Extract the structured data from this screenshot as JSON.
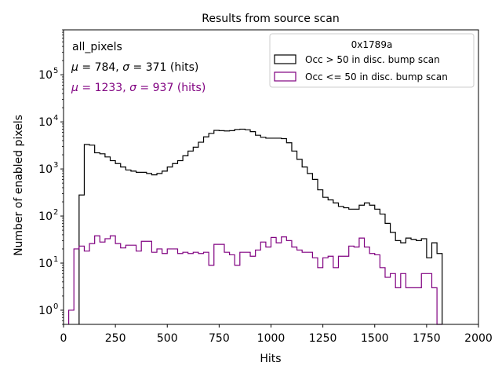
{
  "chart_data": {
    "type": "histogram",
    "title": "Results from source scan",
    "xlabel": "Hits",
    "ylabel": "Number of enabled pixels",
    "xlim": [
      0,
      2000
    ],
    "ylim_log": [
      0.5,
      900000
    ],
    "yscale": "log",
    "x_ticks": [
      0,
      250,
      500,
      750,
      1000,
      1250,
      1500,
      1750,
      2000
    ],
    "x_tick_labels": [
      "0",
      "250",
      "500",
      "750",
      "1000",
      "1250",
      "1500",
      "1750",
      "2000"
    ],
    "y_ticks": [
      1,
      10,
      100,
      1000,
      10000,
      100000
    ],
    "y_tick_labels": [
      {
        "base": "10",
        "exp": "0"
      },
      {
        "base": "10",
        "exp": "1"
      },
      {
        "base": "10",
        "exp": "2"
      },
      {
        "base": "10",
        "exp": "3"
      },
      {
        "base": "10",
        "exp": "4"
      },
      {
        "base": "10",
        "exp": "5"
      }
    ],
    "annotations": {
      "label": "all_pixels",
      "series1_stats": {
        "mu": "784",
        "sigma": "371",
        "unit": "(hits)"
      },
      "series2_stats": {
        "mu": "1233",
        "sigma": "937",
        "unit": "(hits)"
      }
    },
    "legend": {
      "position": "top-right",
      "title": "0x1789a"
    },
    "bin_width": 25,
    "series": [
      {
        "name": "Occ > 50 in disc. bump scan",
        "color": "#000000",
        "edges_start": 75,
        "values": [
          280,
          3300,
          3200,
          2200,
          2100,
          1800,
          1500,
          1300,
          1100,
          950,
          900,
          850,
          850,
          800,
          750,
          800,
          900,
          1100,
          1300,
          1500,
          1900,
          2400,
          2900,
          3700,
          4800,
          5700,
          6600,
          6500,
          6400,
          6500,
          6900,
          7000,
          6800,
          6200,
          5200,
          4700,
          4500,
          4500,
          4500,
          4400,
          3600,
          2400,
          1600,
          1100,
          800,
          600,
          360,
          250,
          220,
          190,
          160,
          150,
          140,
          140,
          170,
          190,
          170,
          140,
          110,
          70,
          45,
          30,
          27,
          34,
          32,
          30,
          33,
          13,
          27,
          16
        ]
      },
      {
        "name": "Occ <= 50 in disc. bump scan",
        "color": "#800080",
        "edges_start": 25,
        "values": [
          1.0,
          20,
          23,
          18,
          26,
          38,
          28,
          33,
          38,
          26,
          21,
          24,
          24,
          18,
          29,
          29,
          17,
          20,
          16,
          20,
          20,
          16,
          17,
          16,
          17,
          16,
          17,
          9,
          25,
          25,
          17,
          15,
          9,
          17,
          17,
          14,
          19,
          28,
          22,
          35,
          27,
          36,
          30,
          22,
          19,
          17,
          17,
          13,
          8,
          13,
          14,
          8,
          14,
          14,
          23,
          22,
          34,
          22,
          16,
          15,
          8,
          5,
          6,
          3,
          6,
          3,
          3,
          3,
          6,
          6,
          3,
          0.5
        ]
      }
    ]
  }
}
